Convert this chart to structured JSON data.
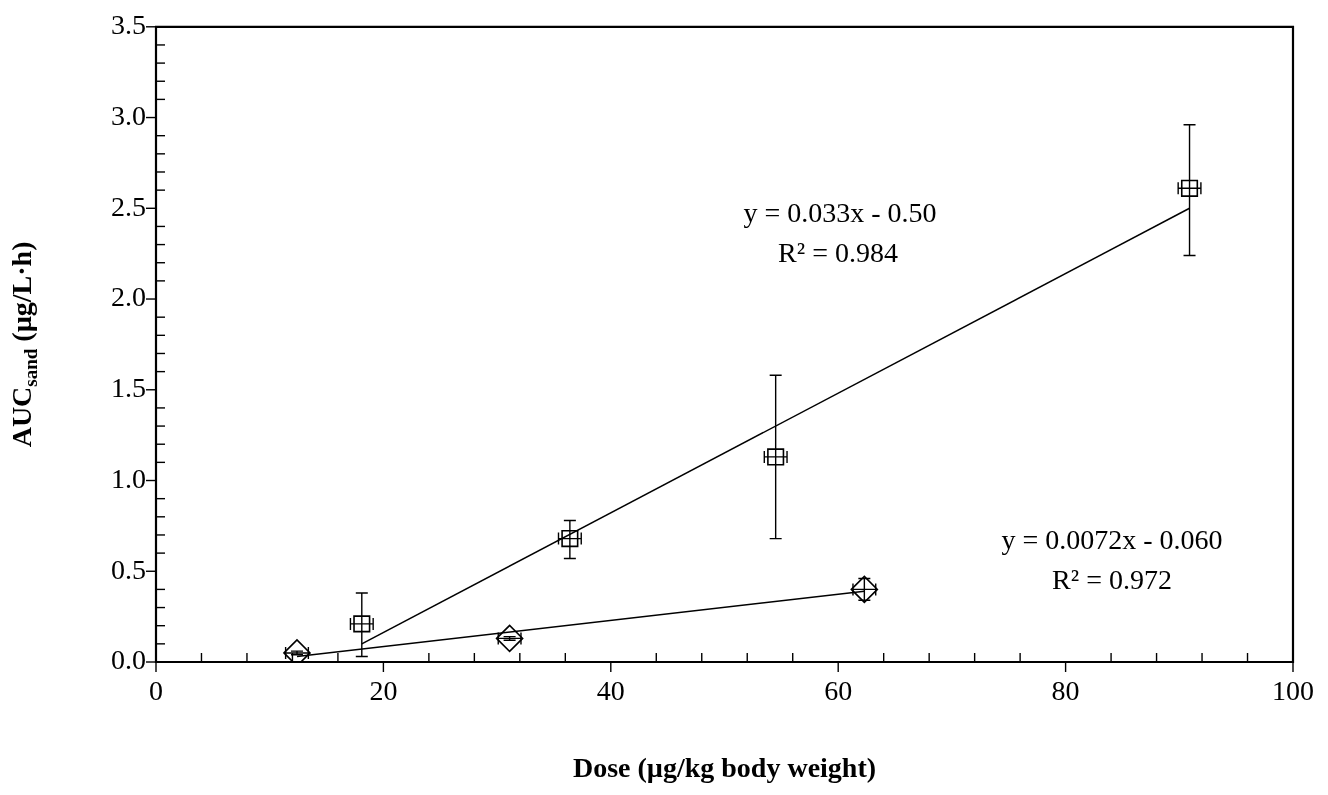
{
  "chart_data": {
    "type": "scatter",
    "xlabel": "Dose (µg/kg body weight)",
    "ylabel": "AUC$_{sand}$ (µg/L·h)",
    "xlim": [
      0,
      100
    ],
    "ylim": [
      0,
      3.5
    ],
    "xticks": [
      0,
      {
        "value": 4,
        "label": null
      },
      {
        "value": 8,
        "label": null
      },
      {
        "value": 12,
        "label": null
      },
      {
        "value": 16,
        "label": null
      },
      20,
      {
        "value": 24,
        "label": null
      },
      {
        "value": 28,
        "label": null
      },
      {
        "value": 32,
        "label": null
      },
      {
        "value": 36,
        "label": null
      },
      40,
      {
        "value": 44,
        "label": null
      },
      {
        "value": 48,
        "label": null
      },
      {
        "value": 52,
        "label": null
      },
      {
        "value": 56,
        "label": null
      },
      60,
      {
        "value": 64,
        "label": null
      },
      {
        "value": 68,
        "label": null
      },
      {
        "value": 72,
        "label": null
      },
      {
        "value": 76,
        "label": null
      },
      80,
      {
        "value": 84,
        "label": null
      },
      {
        "value": 88,
        "label": null
      },
      {
        "value": 92,
        "label": null
      },
      {
        "value": 96,
        "label": null
      },
      100
    ],
    "yticks": [
      {
        "value": 0,
        "label": "0.0"
      },
      {
        "value": 0.1,
        "label": null
      },
      {
        "value": 0.2,
        "label": null
      },
      {
        "value": 0.3,
        "label": null
      },
      {
        "value": 0.4,
        "label": null
      },
      {
        "value": 0.5,
        "label": "0.5"
      },
      {
        "value": 0.6,
        "label": null
      },
      {
        "value": 0.7,
        "label": null
      },
      {
        "value": 0.8,
        "label": null
      },
      {
        "value": 0.9,
        "label": null
      },
      {
        "value": 1,
        "label": "1.0"
      },
      {
        "value": 1.1,
        "label": null
      },
      {
        "value": 1.2,
        "label": null
      },
      {
        "value": 1.3,
        "label": null
      },
      {
        "value": 1.4,
        "label": null
      },
      {
        "value": 1.5,
        "label": "1.5"
      },
      {
        "value": 1.6,
        "label": null
      },
      {
        "value": 1.7,
        "label": null
      },
      {
        "value": 1.8,
        "label": null
      },
      {
        "value": 1.9,
        "label": null
      },
      {
        "value": 2,
        "label": "2.0"
      },
      {
        "value": 2.1,
        "label": null
      },
      {
        "value": 2.2,
        "label": null
      },
      {
        "value": 2.3,
        "label": null
      },
      {
        "value": 2.4,
        "label": null
      },
      {
        "value": 2.5,
        "label": "2.5"
      },
      {
        "value": 2.6,
        "label": null
      },
      {
        "value": 2.7,
        "label": null
      },
      {
        "value": 2.8,
        "label": null
      },
      {
        "value": 2.9,
        "label": null
      },
      {
        "value": 3,
        "label": "3.0"
      },
      {
        "value": 3.1,
        "label": null
      },
      {
        "value": 3.2,
        "label": null
      },
      {
        "value": 3.3,
        "label": null
      },
      {
        "value": 3.4,
        "label": null
      },
      {
        "value": 3.5,
        "label": "3.5"
      }
    ],
    "grid": false,
    "legend": false,
    "series": [
      {
        "type": "scatter",
        "color": "#000000",
        "marker": "square",
        "x": [
          18.1,
          36.4,
          54.5,
          90.9
        ],
        "values": [
          0.21,
          0.68,
          1.13,
          2.61
        ],
        "errors": [
          [
            0.03,
            0.38
          ],
          [
            0.57,
            0.78
          ],
          [
            0.68,
            1.58
          ],
          [
            2.24,
            2.96
          ]
        ],
        "xerrors": [
          1,
          1,
          1,
          1
        ]
      },
      {
        "type": "scatter",
        "color": "#000000",
        "marker": "diamond",
        "x": [
          12.4,
          31.1,
          62.3
        ],
        "values": [
          0.05,
          0.13,
          0.4
        ],
        "errors": [
          0.01,
          0.01,
          0.06
        ],
        "xerrors": [
          1,
          1,
          1
        ]
      },
      {
        "type": "line",
        "color": "#000000",
        "marker": "none",
        "line_style": "solid",
        "x": [
          18.1,
          90.9
        ],
        "values": [
          0.1,
          2.5
        ]
      },
      {
        "type": "line",
        "color": "#000000",
        "marker": "none",
        "line_style": "solid",
        "x": [
          12.4,
          62.3
        ],
        "values": [
          0.03,
          0.39
        ]
      }
    ],
    "annotations": [
      "y = 0.033x - 0.50",
      "R² = 0.984",
      "y = 0.0072x - 0.060",
      "R² = 0.972"
    ]
  }
}
